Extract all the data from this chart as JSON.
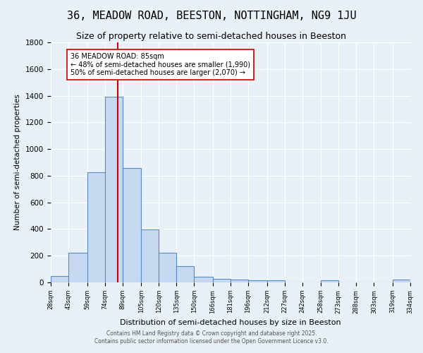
{
  "title": "36, MEADOW ROAD, BEESTON, NOTTINGHAM, NG9 1JU",
  "subtitle": "Size of property relative to semi-detached houses in Beeston",
  "xlabel": "Distribution of semi-detached houses by size in Beeston",
  "ylabel": "Number of semi-detached properties",
  "bar_edges": [
    28,
    43,
    59,
    74,
    89,
    105,
    120,
    135,
    150,
    166,
    181,
    196,
    212,
    227,
    242,
    258,
    273,
    288,
    303,
    319,
    334
  ],
  "bar_heights": [
    50,
    220,
    825,
    1390,
    860,
    395,
    220,
    120,
    45,
    25,
    20,
    15,
    15,
    0,
    0,
    15,
    0,
    0,
    0,
    20
  ],
  "bar_color": "#c7d9f0",
  "bar_edgecolor": "#5a8ac6",
  "property_value": 85,
  "vline_color": "#cc0000",
  "annotation_text": "36 MEADOW ROAD: 85sqm\n← 48% of semi-detached houses are smaller (1,990)\n50% of semi-detached houses are larger (2,070) →",
  "annotation_box_edgecolor": "#cc0000",
  "annotation_box_facecolor": "#ffffff",
  "footer_line1": "Contains HM Land Registry data © Crown copyright and database right 2025.",
  "footer_line2": "Contains public sector information licensed under the Open Government Licence v3.0.",
  "bg_color": "#e8f0f8",
  "plot_bg_color": "#e8f0f8",
  "ylim": [
    0,
    1800
  ],
  "title_fontsize": 11,
  "subtitle_fontsize": 9,
  "tick_labels": [
    "28sqm",
    "43sqm",
    "59sqm",
    "74sqm",
    "89sqm",
    "105sqm",
    "120sqm",
    "135sqm",
    "150sqm",
    "166sqm",
    "181sqm",
    "196sqm",
    "212sqm",
    "227sqm",
    "242sqm",
    "258sqm",
    "273sqm",
    "288sqm",
    "303sqm",
    "319sqm",
    "334sqm"
  ]
}
